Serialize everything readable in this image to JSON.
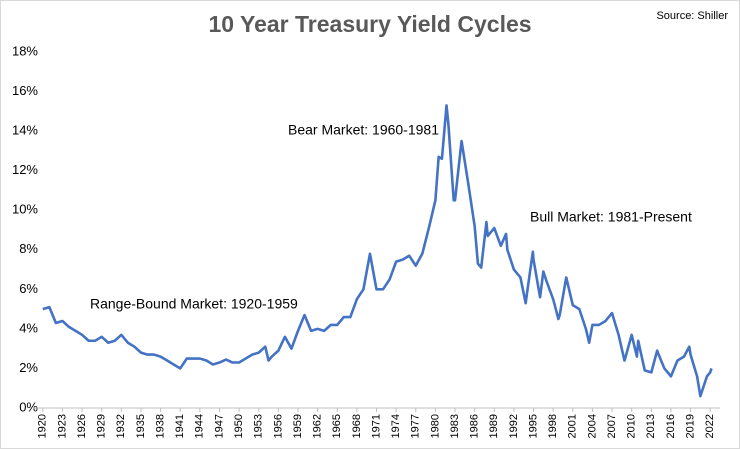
{
  "chart_data": {
    "type": "line",
    "title": "10 Year Treasury Yield Cycles",
    "source": "Source: Shiller",
    "annotations": [
      "Bear Market: 1960-1981",
      "Bull Market: 1981-Present",
      "Range-Bound Market: 1920-1959"
    ],
    "x": [
      1920,
      1921,
      1922,
      1923,
      1924,
      1925,
      1926,
      1927,
      1928,
      1929,
      1930,
      1931,
      1932,
      1933,
      1934,
      1935,
      1936,
      1937,
      1938,
      1939,
      1940,
      1941,
      1942,
      1943,
      1944,
      1945,
      1946,
      1947,
      1948,
      1949,
      1950,
      1951,
      1952,
      1953,
      1954,
      1954.5,
      1955,
      1956,
      1957,
      1958,
      1959,
      1960,
      1961,
      1962,
      1963,
      1964,
      1965,
      1966,
      1967,
      1968,
      1969,
      1970,
      1971,
      1972,
      1973,
      1974,
      1975,
      1976,
      1977,
      1978,
      1979,
      1980,
      1980.5,
      1981,
      1981.7,
      1982,
      1982.8,
      1983,
      1984,
      1985,
      1986,
      1986.5,
      1987,
      1987.8,
      1988,
      1989,
      1990,
      1990.8,
      1991,
      1992,
      1993,
      1993.8,
      1994,
      1994.9,
      1995,
      1996,
      1996.5,
      1997,
      1998,
      1998.8,
      1999,
      2000,
      2001,
      2002,
      2003,
      2003.5,
      2004,
      2005,
      2006,
      2007,
      2008,
      2008.9,
      2009,
      2010,
      2010.8,
      2011,
      2012,
      2013,
      2013.9,
      2014,
      2015,
      2016,
      2017,
      2018,
      2018.8,
      2019,
      2020,
      2020.5,
      2021,
      2021.5,
      2022,
      2022.2
    ],
    "series": [
      {
        "name": "10 Year Treasury Yield",
        "color": "#4472c4",
        "values": [
          5.0,
          5.1,
          4.3,
          4.4,
          4.1,
          3.9,
          3.7,
          3.4,
          3.4,
          3.6,
          3.3,
          3.4,
          3.7,
          3.3,
          3.1,
          2.8,
          2.7,
          2.7,
          2.6,
          2.4,
          2.2,
          2.0,
          2.5,
          2.5,
          2.5,
          2.4,
          2.2,
          2.3,
          2.45,
          2.3,
          2.3,
          2.5,
          2.7,
          2.8,
          3.1,
          2.4,
          2.6,
          2.9,
          3.6,
          3.0,
          3.9,
          4.7,
          3.9,
          4.0,
          3.9,
          4.2,
          4.2,
          4.6,
          4.6,
          5.5,
          6.0,
          7.8,
          6.0,
          6.0,
          6.5,
          7.4,
          7.5,
          7.7,
          7.2,
          7.8,
          9.1,
          10.5,
          12.7,
          12.6,
          15.3,
          14.3,
          10.5,
          10.5,
          13.5,
          11.4,
          9.2,
          7.3,
          7.1,
          9.4,
          8.7,
          9.1,
          8.2,
          8.8,
          8.0,
          7.0,
          6.6,
          5.3,
          5.8,
          7.9,
          7.5,
          5.6,
          6.9,
          6.4,
          5.5,
          4.5,
          4.7,
          6.6,
          5.2,
          5.0,
          4.0,
          3.3,
          4.2,
          4.2,
          4.4,
          4.8,
          3.7,
          2.4,
          2.5,
          3.7,
          2.6,
          3.4,
          1.9,
          1.8,
          2.9,
          2.8,
          2.0,
          1.6,
          2.4,
          2.6,
          3.1,
          2.7,
          1.6,
          0.6,
          1.1,
          1.6,
          1.8,
          2.0
        ]
      }
    ],
    "xlim": [
      1918.5,
      2023.5
    ],
    "xticks": [
      1920,
      1923,
      1926,
      1929,
      1932,
      1935,
      1938,
      1941,
      1944,
      1947,
      1950,
      1953,
      1956,
      1959,
      1962,
      1965,
      1968,
      1971,
      1974,
      1977,
      1980,
      1983,
      1986,
      1989,
      1992,
      1995,
      1998,
      2001,
      2004,
      2007,
      2010,
      2013,
      2016,
      2019,
      2022
    ],
    "ylim": [
      0,
      18
    ],
    "yticks": [
      {
        "value": 0,
        "label": "0%"
      },
      {
        "value": 2,
        "label": "2%"
      },
      {
        "value": 4,
        "label": "4%"
      },
      {
        "value": 6,
        "label": "6%"
      },
      {
        "value": 8,
        "label": "8%"
      },
      {
        "value": 10,
        "label": "10%"
      },
      {
        "value": 12,
        "label": "12%"
      },
      {
        "value": 14,
        "label": "14%"
      },
      {
        "value": 16,
        "label": "16%"
      },
      {
        "value": 18,
        "label": "18%"
      }
    ],
    "grid": false
  }
}
